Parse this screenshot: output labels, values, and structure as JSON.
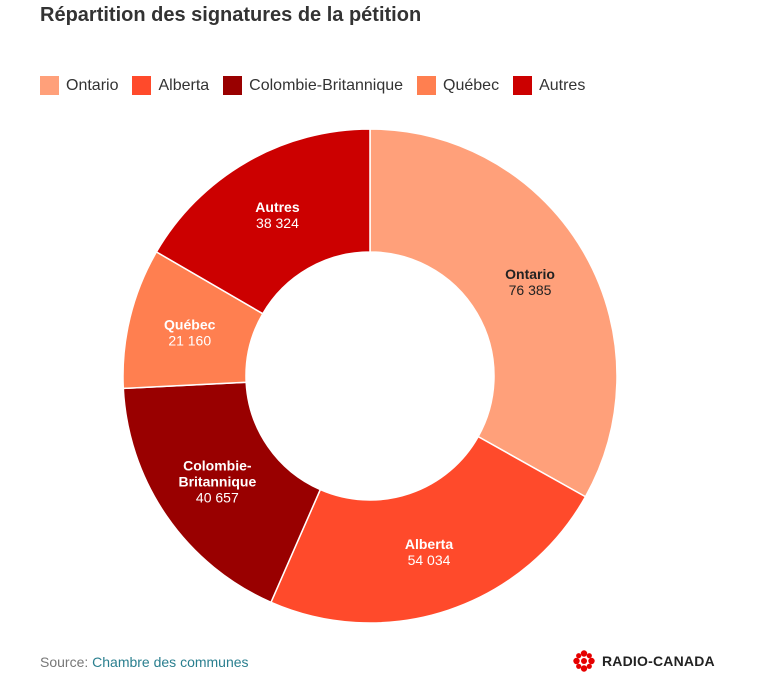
{
  "title": "Répartition des signatures de la pétition",
  "source": {
    "prefix": "Source: ",
    "link": "Chambre des communes"
  },
  "logo": {
    "text": "RADIO-CANADA",
    "icon": "cbc-gem-icon"
  },
  "chart_data": {
    "type": "pie",
    "donut": true,
    "legend_position": "top",
    "slices": [
      {
        "name": "Ontario",
        "value": 76385,
        "display": "76 385",
        "color": "#FFA07A",
        "label_color": "#222222"
      },
      {
        "name": "Alberta",
        "value": 54034,
        "display": "54 034",
        "color": "#FF4A2B",
        "label_color": "#ffffff"
      },
      {
        "name": "Colombie-Britannique",
        "value": 40657,
        "display": "40 657",
        "color": "#990000",
        "label_color": "#ffffff",
        "label_lines": [
          "Colombie-",
          "Britannique"
        ]
      },
      {
        "name": "Québec",
        "value": 21160,
        "display": "21 160",
        "color": "#FF7F50",
        "label_color": "#ffffff"
      },
      {
        "name": "Autres",
        "value": 38324,
        "display": "38 324",
        "color": "#CC0000",
        "label_color": "#ffffff"
      }
    ]
  }
}
